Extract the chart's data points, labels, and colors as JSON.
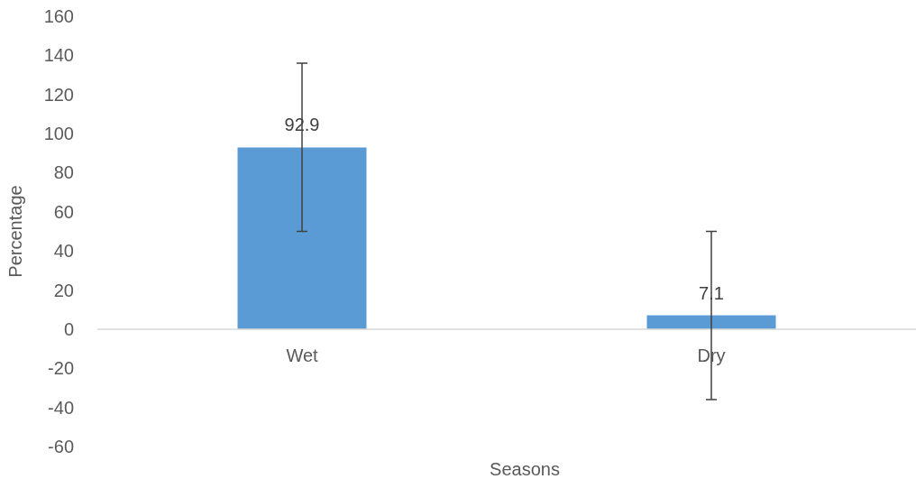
{
  "chart_data": {
    "type": "bar",
    "xlabel": "Seasons",
    "ylabel": "Percentage",
    "categories": [
      "Wet",
      "Dry"
    ],
    "values": [
      92.9,
      7.1
    ],
    "errors": [
      [
        50,
        136
      ],
      [
        -36,
        50
      ]
    ],
    "color": "#5b9bd5",
    "data_labels": true,
    "ylim": [
      -60,
      160
    ],
    "yticks": [
      -60,
      -40,
      -20,
      0,
      20,
      40,
      60,
      80,
      100,
      120,
      140,
      160
    ],
    "grid": false
  }
}
